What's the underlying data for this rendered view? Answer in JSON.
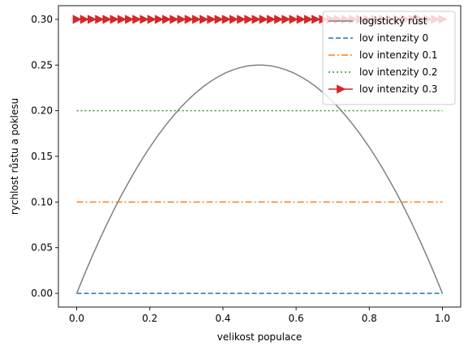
{
  "chart_data": {
    "type": "line",
    "title": "",
    "xlabel": "velikost populace",
    "ylabel": "rychlost růstu a poklesu",
    "xlim": [
      -0.05,
      1.05
    ],
    "ylim": [
      -0.015,
      0.315
    ],
    "xticks": [
      0.0,
      0.2,
      0.4,
      0.6,
      0.8,
      1.0
    ],
    "xtick_labels": [
      "0.0",
      "0.2",
      "0.4",
      "0.6",
      "0.8",
      "1.0"
    ],
    "yticks": [
      0.0,
      0.05,
      0.1,
      0.15,
      0.2,
      0.25,
      0.3
    ],
    "ytick_labels": [
      "0.00",
      "0.05",
      "0.10",
      "0.15",
      "0.20",
      "0.25",
      "0.30"
    ],
    "grid": false,
    "legend_position": "top-right",
    "x": [
      0.0,
      0.0204,
      0.0408,
      0.0612,
      0.0816,
      0.102,
      0.1224,
      0.1429,
      0.1633,
      0.1837,
      0.2041,
      0.2245,
      0.2449,
      0.2653,
      0.2857,
      0.3061,
      0.3265,
      0.3469,
      0.3673,
      0.3878,
      0.4082,
      0.4286,
      0.449,
      0.4694,
      0.4898,
      0.5102,
      0.5306,
      0.551,
      0.5714,
      0.5918,
      0.6122,
      0.6327,
      0.6531,
      0.6735,
      0.6939,
      0.7143,
      0.7347,
      0.7551,
      0.7755,
      0.7959,
      0.8163,
      0.8367,
      0.8571,
      0.8776,
      0.898,
      0.9184,
      0.9388,
      0.9592,
      0.9796,
      1.0
    ],
    "series": [
      {
        "name": "logistický růst",
        "color": "#808080",
        "style": "solid",
        "marker": "none",
        "values": [
          0.0,
          0.02,
          0.0392,
          0.0575,
          0.075,
          0.0916,
          0.1075,
          0.1224,
          0.1366,
          0.15,
          0.1624,
          0.1741,
          0.1849,
          0.1949,
          0.2041,
          0.2124,
          0.2199,
          0.2266,
          0.2324,
          0.2374,
          0.2416,
          0.2449,
          0.2474,
          0.2491,
          0.2499,
          0.2499,
          0.2491,
          0.2474,
          0.2449,
          0.2416,
          0.2374,
          0.2324,
          0.2266,
          0.2199,
          0.2124,
          0.2041,
          0.1949,
          0.1849,
          0.1741,
          0.1624,
          0.15,
          0.1366,
          0.1224,
          0.1075,
          0.0916,
          0.075,
          0.0575,
          0.0392,
          0.02,
          0.0
        ]
      },
      {
        "name": "lov intenzity 0",
        "color": "#1f77b4",
        "style": "dashed",
        "marker": "none",
        "constant": 0.0
      },
      {
        "name": "lov intenzity 0.1",
        "color": "#ff7f0e",
        "style": "dashdot",
        "marker": "none",
        "constant": 0.1
      },
      {
        "name": "lov intenzity 0.2",
        "color": "#2ca02c",
        "style": "dotted",
        "marker": "none",
        "constant": 0.2
      },
      {
        "name": "lov intenzity 0.3",
        "color": "#d62728",
        "style": "solid",
        "marker": "triangle-right",
        "constant": 0.3
      }
    ]
  }
}
